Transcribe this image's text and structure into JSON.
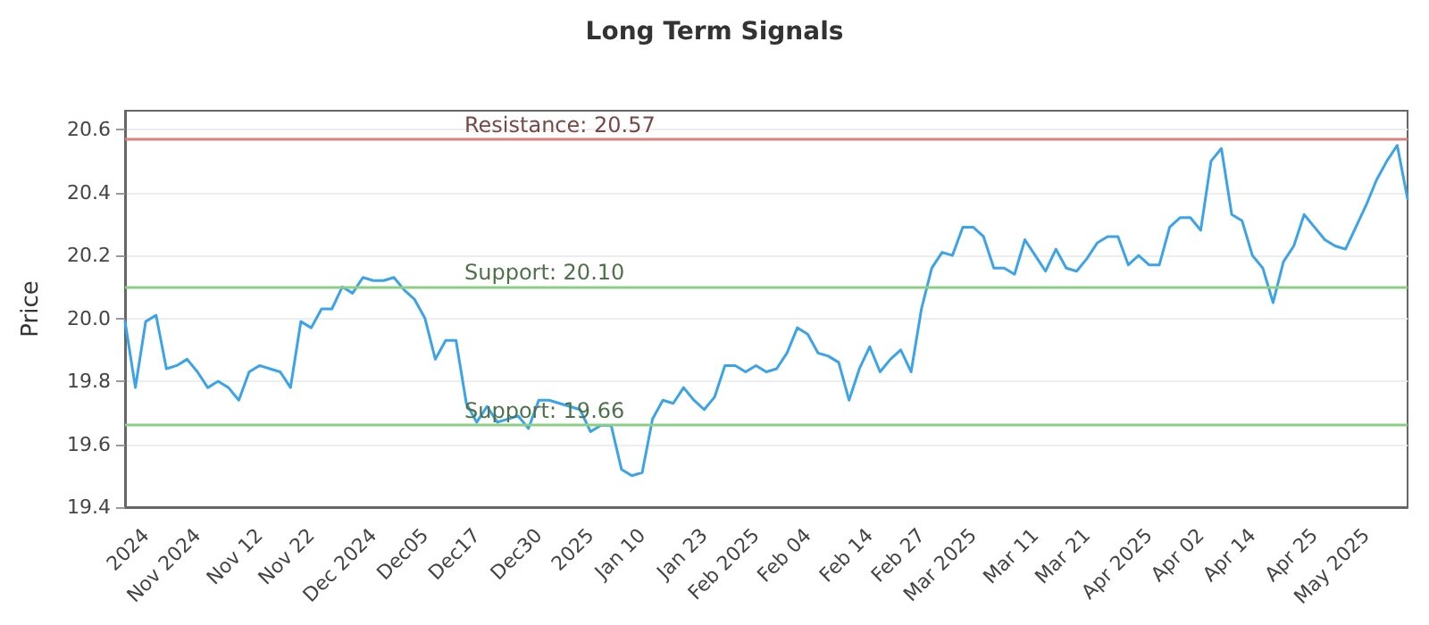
{
  "chart_data": {
    "type": "line",
    "title": "Long Term Signals",
    "ylabel": "Price",
    "categories": [
      null,
      null,
      "2024",
      null,
      null,
      null,
      null,
      "Nov 2024",
      null,
      null,
      null,
      null,
      null,
      "Nov 12",
      null,
      null,
      null,
      null,
      "Nov 22",
      null,
      null,
      null,
      null,
      null,
      "Dec 2024",
      null,
      null,
      null,
      null,
      "Dec05",
      null,
      null,
      null,
      null,
      "Dec17",
      null,
      null,
      null,
      null,
      null,
      "Dec30",
      null,
      null,
      null,
      null,
      "2025",
      null,
      null,
      null,
      null,
      "Jan 10",
      null,
      null,
      null,
      null,
      null,
      "Jan 23",
      null,
      null,
      null,
      null,
      "Feb 2025",
      null,
      null,
      null,
      null,
      "Feb 04",
      null,
      null,
      null,
      null,
      null,
      "Feb 14",
      null,
      null,
      null,
      null,
      "Feb 27",
      null,
      null,
      null,
      null,
      "Mar 2025",
      null,
      null,
      null,
      null,
      null,
      "Mar 11",
      null,
      null,
      null,
      null,
      "Mar 21",
      null,
      null,
      null,
      null,
      null,
      "Apr 2025",
      null,
      null,
      null,
      null,
      "Apr 02",
      null,
      null,
      null,
      null,
      "Apr 14",
      null,
      null,
      null,
      null,
      null,
      "Apr 25",
      null,
      null,
      null,
      null,
      "May 2025",
      null,
      null,
      null,
      null
    ],
    "series": [
      {
        "color": "#3ba3e8",
        "values": [
          19.99,
          19.78,
          19.99,
          20.01,
          19.84,
          19.85,
          19.87,
          19.83,
          19.78,
          19.8,
          19.78,
          19.74,
          19.83,
          19.85,
          19.84,
          19.83,
          19.78,
          19.99,
          19.97,
          20.03,
          20.03,
          20.1,
          20.08,
          20.13,
          20.12,
          20.12,
          20.13,
          20.09,
          20.06,
          20.0,
          19.87,
          19.93,
          19.93,
          19.73,
          19.67,
          19.72,
          19.67,
          19.68,
          19.69,
          19.65,
          19.74,
          19.74,
          19.73,
          19.72,
          19.71,
          19.64,
          19.66,
          19.66,
          19.52,
          19.5,
          19.51,
          19.68,
          19.74,
          19.73,
          19.78,
          19.74,
          19.71,
          19.75,
          19.85,
          19.85,
          19.83,
          19.85,
          19.83,
          19.84,
          19.89,
          19.97,
          19.95,
          19.89,
          19.88,
          19.86,
          19.74,
          19.84,
          19.91,
          19.83,
          19.87,
          19.9,
          19.83,
          20.03,
          20.16,
          20.21,
          20.2,
          20.29,
          20.29,
          20.26,
          20.16,
          20.16,
          20.14,
          20.25,
          20.2,
          20.15,
          20.22,
          20.16,
          20.15,
          20.19,
          20.24,
          20.26,
          20.26,
          20.17,
          20.2,
          20.17,
          20.17,
          20.29,
          20.32,
          20.32,
          20.28,
          20.5,
          20.54,
          20.33,
          20.31,
          20.2,
          20.16,
          20.05,
          20.18,
          20.23,
          20.33,
          20.29,
          20.25,
          20.23,
          20.22,
          20.29,
          20.36,
          20.44,
          20.5,
          20.55,
          20.38
        ]
      }
    ],
    "ylim": [
      19.4,
      20.66
    ],
    "yticks": [
      19.4,
      19.6,
      19.8,
      {
        "value": 20.0,
        "label": "20.0"
      },
      20.2,
      20.4,
      20.6
    ],
    "grid": "y",
    "marker": "none",
    "line_style": "solid",
    "ref_lines": [
      {
        "axis": "y",
        "value": 20.57,
        "label": "Resistance: 20.57",
        "color": "#d9837f"
      },
      {
        "axis": "y",
        "value": 20.1,
        "label": "Support: 20.10",
        "color": "#8ccf84"
      },
      {
        "axis": "y",
        "value": 19.66,
        "label": "Support: 19.66",
        "color": "#8ccf84"
      }
    ]
  }
}
